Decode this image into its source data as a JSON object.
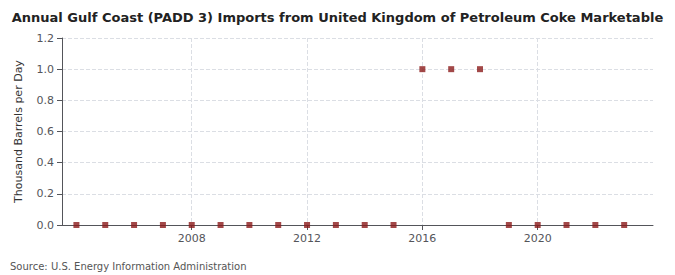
{
  "chart_data": {
    "type": "scatter",
    "title": "Annual Gulf Coast (PADD 3) Imports from United Kingdom of Petroleum Coke Marketable",
    "y_label": "Thousand Barrels per Day",
    "annotations": [
      "Source: U.S. Energy Information Administration"
    ],
    "x": [
      2004,
      2005,
      2006,
      2007,
      2008,
      2009,
      2010,
      2011,
      2012,
      2013,
      2014,
      2015,
      2016,
      2017,
      2018,
      2019,
      2020,
      2021,
      2022,
      2023
    ],
    "values": [
      0,
      0,
      0,
      0,
      0,
      0,
      0,
      0,
      0,
      0,
      0,
      0,
      1,
      1,
      1,
      0,
      0,
      0,
      0,
      0
    ],
    "color": "#8b1a1a",
    "marker": "square",
    "xlim": [
      2003.5,
      2024
    ],
    "xticks": [
      2008,
      2012,
      2016,
      2020
    ],
    "ylim": [
      0,
      1.2
    ],
    "yticks": [
      {
        "value": 0.0,
        "label": "0.0"
      },
      0.2,
      0.4,
      0.6,
      0.8,
      {
        "value": 1.0,
        "label": "1.0"
      },
      1.2
    ],
    "grid": true
  }
}
